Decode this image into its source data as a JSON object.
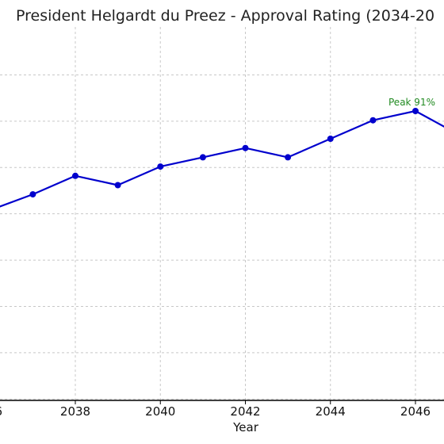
{
  "chart_data": {
    "type": "line",
    "title": "President Helgardt du Preez - Approval Rating (2034-20",
    "xlabel": "Year",
    "ylabel": "",
    "xlim": [
      2036,
      2047.6
    ],
    "ylim": [
      51.3,
      95.9
    ],
    "x_ticks": [
      "6",
      "2038",
      "2040",
      "2042",
      "2044",
      "2046"
    ],
    "grid": true,
    "series": [
      {
        "x": [
          2036,
          2037,
          2038,
          2039,
          2040,
          2041,
          2042,
          2043,
          2044,
          2045,
          2046,
          2047
        ],
        "values": [
          80.4,
          82.1,
          84.1,
          83.1,
          85.1,
          86.1,
          87.1,
          86.1,
          88.1,
          90.1,
          91.1,
          88.6
        ]
      }
    ],
    "annotations": [
      {
        "text": "Peak 91%",
        "x": 2046,
        "y": 91.1
      }
    ],
    "colors": {
      "line": "#0000cd",
      "annotation": "#228b22",
      "grid": "#c8c8c8",
      "axis": "#000000"
    }
  }
}
